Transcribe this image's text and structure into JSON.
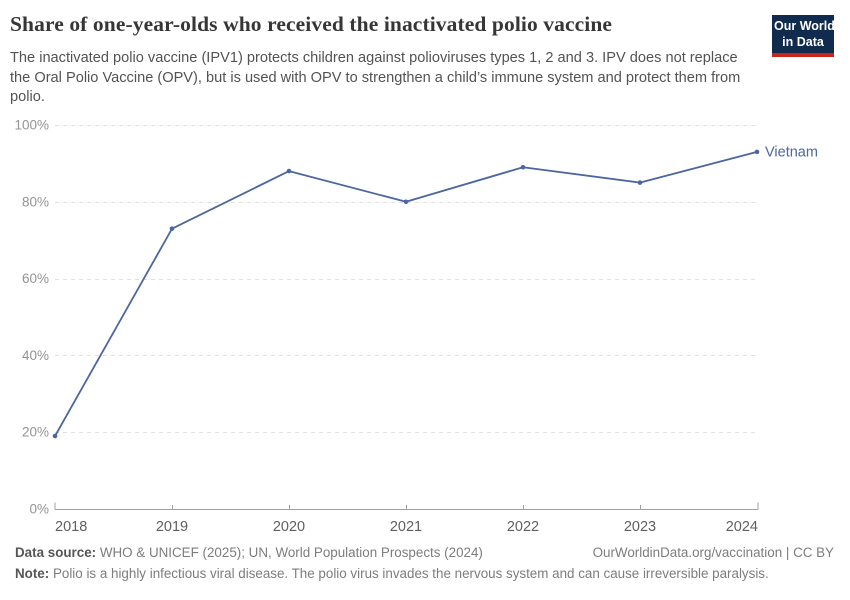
{
  "header": {
    "title": "Share of one-year-olds who received the inactivated polio vaccine",
    "subtitle": "The inactivated polio vaccine (IPV1) protects children against polioviruses types 1, 2 and 3. IPV does not replace the Oral Polio Vaccine (OPV), but is used with OPV to strengthen a child’s immune system and protect them from polio.",
    "logo": {
      "line1": "Our World",
      "line2": "in Data",
      "bg_color": "#102b4e",
      "accent_color": "#c8241b"
    }
  },
  "chart_data": {
    "type": "line",
    "title": "Share of one-year-olds who received the inactivated polio vaccine",
    "x": [
      2018,
      2019,
      2020,
      2021,
      2022,
      2023,
      2024
    ],
    "x_labels": [
      "2018",
      "2019",
      "2020",
      "2021",
      "2022",
      "2023",
      "2024"
    ],
    "series": [
      {
        "name": "Vietnam",
        "values": [
          19,
          73,
          88,
          80,
          89,
          85,
          93
        ],
        "color": "#4c669f"
      }
    ],
    "ylim": [
      0,
      100
    ],
    "yticks": [
      0,
      20,
      40,
      60,
      80,
      100
    ],
    "ytick_labels": [
      "0%",
      "20%",
      "40%",
      "60%",
      "80%",
      "100%"
    ],
    "xlabel": "",
    "ylabel": "",
    "grid": "horizontal-dashed",
    "legend": "line-end-label",
    "colors": {
      "gridline": "#e0e0e0",
      "axis": "#a0a0a0",
      "ytick_text": "#949494",
      "xtick_text": "#606060"
    }
  },
  "footer": {
    "source_label": "Data source:",
    "source_text": "WHO & UNICEF (2025); UN, World Population Prospects (2024)",
    "credit": "OurWorldinData.org/vaccination | CC BY",
    "note_label": "Note:",
    "note_text": "Polio is a highly infectious viral disease. The polio virus invades the nervous system and can cause irreversible paralysis."
  }
}
